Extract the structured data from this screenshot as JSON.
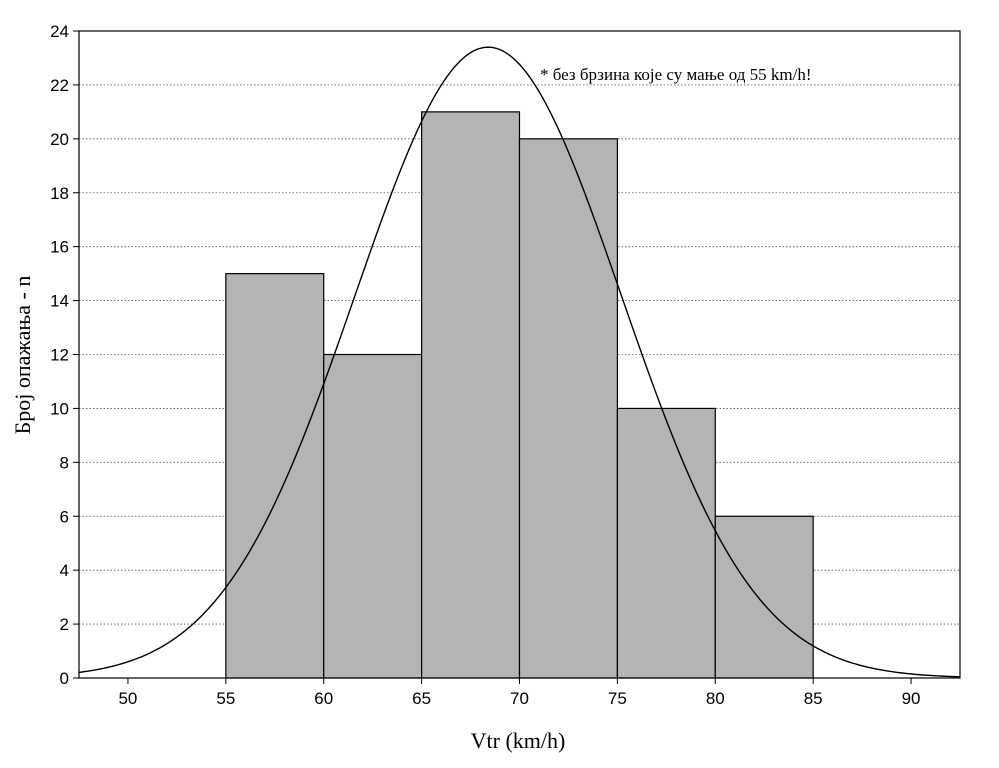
{
  "chart_data": {
    "type": "bar",
    "subtype": "histogram",
    "xlabel": "Vtr (km/h)",
    "ylabel": "Број опажања - n",
    "annotation": "* без брзина које су мање од 55 km/h!",
    "xlim": [
      47.5,
      92.5
    ],
    "ylim": [
      0,
      24
    ],
    "x_ticks": [
      50,
      55,
      60,
      65,
      70,
      75,
      80,
      85,
      90
    ],
    "y_ticks": [
      0,
      2,
      4,
      6,
      8,
      10,
      12,
      14,
      16,
      18,
      20,
      22,
      24
    ],
    "grid": "horizontal dotted",
    "bins": [
      {
        "from": 55,
        "to": 60,
        "value": 15
      },
      {
        "from": 60,
        "to": 65,
        "value": 12
      },
      {
        "from": 65,
        "to": 70,
        "value": 21
      },
      {
        "from": 70,
        "to": 75,
        "value": 20
      },
      {
        "from": 75,
        "to": 80,
        "value": 10
      },
      {
        "from": 80,
        "to": 85,
        "value": 6
      }
    ],
    "fit_curve": {
      "type": "normal",
      "mean": 68.4,
      "peak": 23.4,
      "sd": 6.8
    },
    "colors": {
      "bar_fill": "#b4b4b4",
      "bar_stroke": "#000000"
    }
  }
}
